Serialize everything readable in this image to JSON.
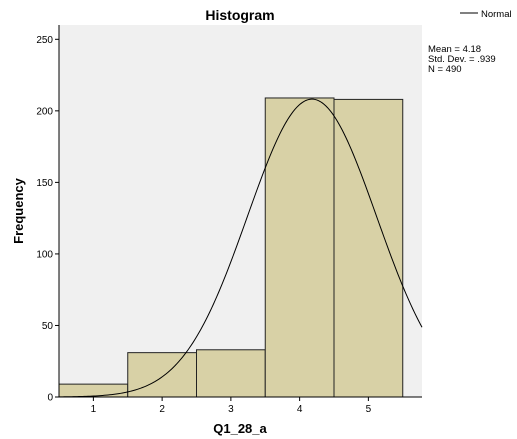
{
  "chart_data": {
    "type": "bar",
    "title": "Histogram",
    "xlabel": "Q1_28_a",
    "ylabel": "Frequency",
    "categories": [
      "1",
      "2",
      "3",
      "4",
      "5"
    ],
    "values": [
      9,
      31,
      33,
      209,
      208
    ],
    "ylim": [
      0,
      260
    ],
    "yticks": [
      "0",
      "50",
      "100",
      "150",
      "200",
      "250"
    ],
    "bin_range": [
      0.5,
      5.5
    ],
    "xlim": [
      0.5,
      5.78
    ],
    "normal_curve": {
      "label": "Normal",
      "mean": 4.18,
      "std": 0.939,
      "n": 490
    },
    "stats": {
      "mean": "Mean = 4.18",
      "std": "Std. Dev. = .939",
      "n": "N = 490"
    },
    "legend_position": "top-right",
    "grid": false,
    "colors": {
      "plot_background": "#f0f0f0",
      "bar_fill": "#d8d1a6",
      "bar_stroke": "#222222",
      "curve": "#000000"
    }
  }
}
